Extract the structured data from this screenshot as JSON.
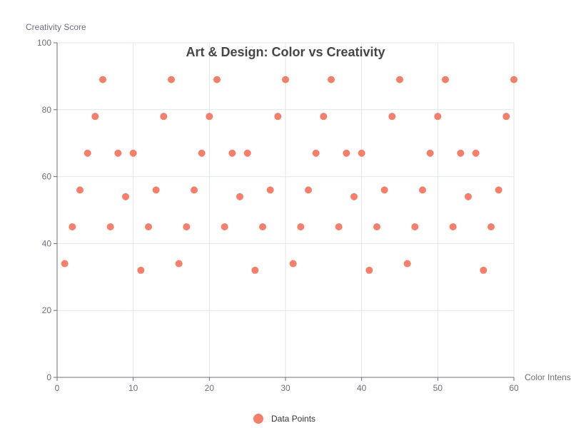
{
  "chart_data": {
    "type": "scatter",
    "title": "Art & Design: Color vs Creativity",
    "xlabel": "Color Intensity",
    "ylabel": "Creativity Score",
    "xlim": [
      0,
      60
    ],
    "ylim": [
      0,
      100
    ],
    "xticks": [
      0,
      10,
      20,
      30,
      40,
      50,
      60
    ],
    "yticks": [
      0,
      20,
      40,
      60,
      80,
      100
    ],
    "grid": true,
    "legend_position": "bottom-center",
    "series": [
      {
        "name": "Data Points",
        "color": "#f47f6b",
        "points": [
          [
            1,
            34
          ],
          [
            2,
            45
          ],
          [
            3,
            56
          ],
          [
            4,
            67
          ],
          [
            5,
            78
          ],
          [
            6,
            89
          ],
          [
            7,
            45
          ],
          [
            8,
            67
          ],
          [
            9,
            54
          ],
          [
            10,
            67
          ],
          [
            11,
            32
          ],
          [
            12,
            45
          ],
          [
            13,
            56
          ],
          [
            14,
            78
          ],
          [
            15,
            89
          ],
          [
            16,
            34
          ],
          [
            17,
            45
          ],
          [
            18,
            56
          ],
          [
            19,
            67
          ],
          [
            20,
            78
          ],
          [
            21,
            89
          ],
          [
            22,
            45
          ],
          [
            23,
            67
          ],
          [
            24,
            54
          ],
          [
            25,
            67
          ],
          [
            26,
            32
          ],
          [
            27,
            45
          ],
          [
            28,
            56
          ],
          [
            29,
            78
          ],
          [
            30,
            89
          ],
          [
            31,
            34
          ],
          [
            32,
            45
          ],
          [
            33,
            56
          ],
          [
            34,
            67
          ],
          [
            35,
            78
          ],
          [
            36,
            89
          ],
          [
            37,
            45
          ],
          [
            38,
            67
          ],
          [
            39,
            54
          ],
          [
            40,
            67
          ],
          [
            41,
            32
          ],
          [
            42,
            45
          ],
          [
            43,
            56
          ],
          [
            44,
            78
          ],
          [
            45,
            89
          ],
          [
            46,
            34
          ],
          [
            47,
            45
          ],
          [
            48,
            56
          ],
          [
            49,
            67
          ],
          [
            50,
            78
          ],
          [
            51,
            89
          ],
          [
            52,
            45
          ],
          [
            53,
            67
          ],
          [
            54,
            54
          ],
          [
            55,
            67
          ],
          [
            56,
            32
          ],
          [
            57,
            45
          ],
          [
            58,
            56
          ],
          [
            59,
            78
          ],
          [
            60,
            89
          ]
        ]
      }
    ]
  }
}
